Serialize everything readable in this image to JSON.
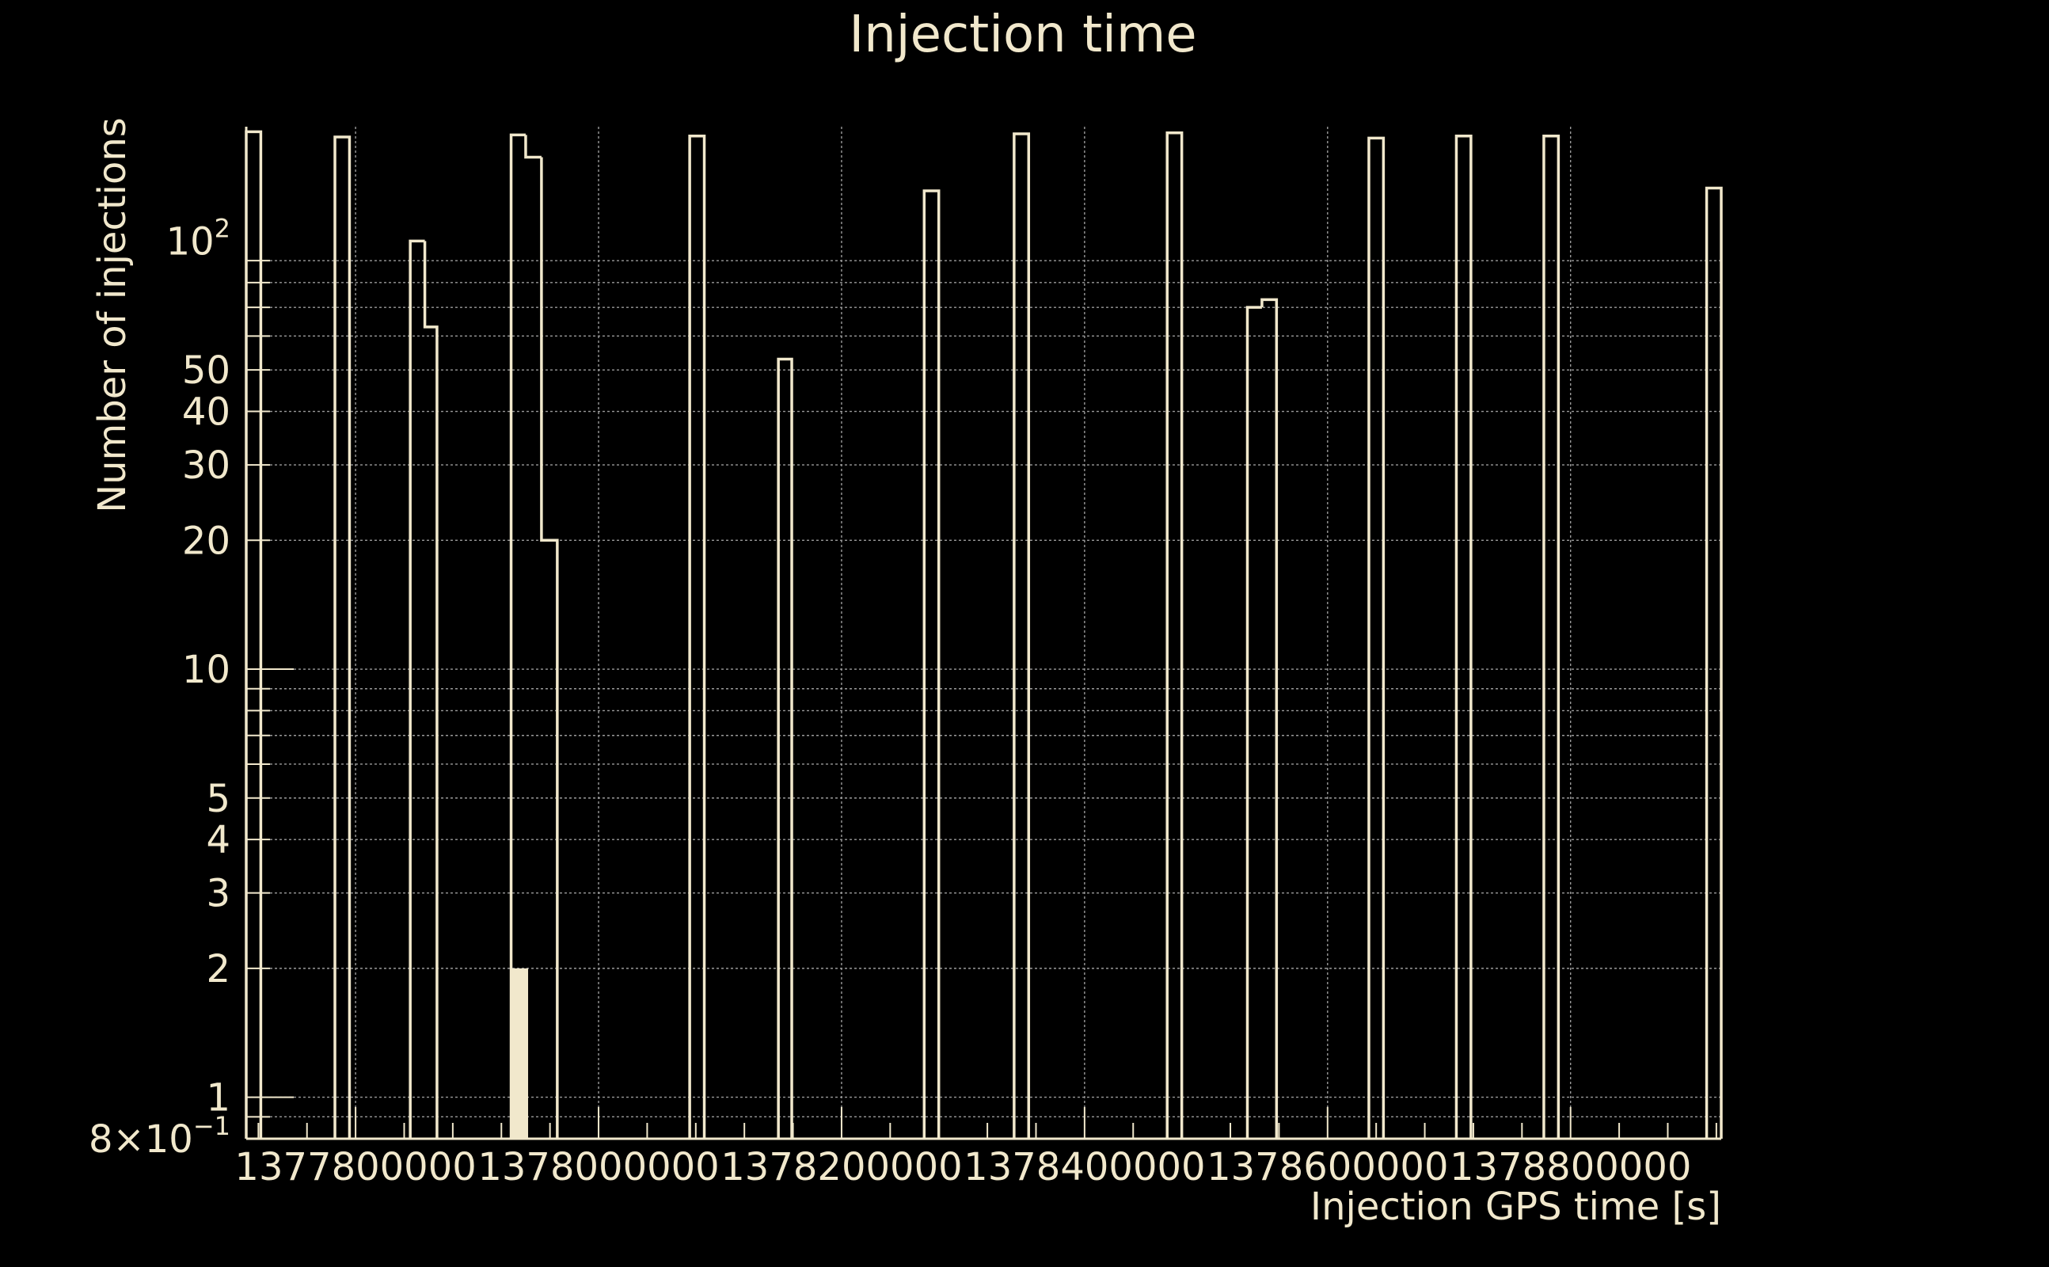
{
  "chart_data": {
    "type": "histogram",
    "title": "Injection time",
    "xlabel": "Injection GPS time [s]",
    "ylabel": "Number of injections",
    "yscale": "log",
    "xlim": [
      1377710000,
      1378924000
    ],
    "ylim": [
      0.8,
      185
    ],
    "grid": true,
    "colors": {
      "background": "#000000",
      "foreground": "#f1e8cc",
      "grid": "#9a9a9a"
    },
    "x_ticks": [
      {
        "value": 1377800000,
        "label": "1377800000"
      },
      {
        "value": 1378000000,
        "label": "1378000000"
      },
      {
        "value": 1378200000,
        "label": "1378200000"
      },
      {
        "value": 1378400000,
        "label": "1378400000"
      },
      {
        "value": 1378600000,
        "label": "1378600000"
      },
      {
        "value": 1378800000,
        "label": "1378800000"
      }
    ],
    "y_ticks": [
      {
        "value": 0.8,
        "base": "8",
        "sup": "−1",
        "prefix": "×10"
      },
      {
        "value": 1,
        "label": "1"
      },
      {
        "value": 2,
        "label": "2"
      },
      {
        "value": 3,
        "label": "3"
      },
      {
        "value": 4,
        "label": "4"
      },
      {
        "value": 5,
        "label": "5"
      },
      {
        "value": 10,
        "label": "10"
      },
      {
        "value": 20,
        "label": "20"
      },
      {
        "value": 30,
        "label": "30"
      },
      {
        "value": 40,
        "label": "40"
      },
      {
        "value": 50,
        "label": "50"
      },
      {
        "value": 100,
        "base": "10",
        "sup": "2"
      }
    ],
    "series": [
      {
        "style": "step",
        "bins": [
          {
            "x0": 1377710000,
            "x1": 1377722000,
            "value": 180
          },
          {
            "x0": 1377783000,
            "x1": 1377795000,
            "value": 175
          },
          {
            "x0": 1377845000,
            "x1": 1377857000,
            "value": 100
          },
          {
            "x0": 1377857000,
            "x1": 1377867000,
            "value": 63
          },
          {
            "x0": 1377928000,
            "x1": 1377940000,
            "value": 177
          },
          {
            "x0": 1377940000,
            "x1": 1377953000,
            "value": 157
          },
          {
            "x0": 1377953000,
            "x1": 1377966000,
            "value": 20
          },
          {
            "x0": 1378075000,
            "x1": 1378087000,
            "value": 176
          },
          {
            "x0": 1378148000,
            "x1": 1378159000,
            "value": 53
          },
          {
            "x0": 1378268000,
            "x1": 1378280000,
            "value": 131
          },
          {
            "x0": 1378342000,
            "x1": 1378354000,
            "value": 178
          },
          {
            "x0": 1378468000,
            "x1": 1378480000,
            "value": 179
          },
          {
            "x0": 1378534000,
            "x1": 1378546000,
            "value": 70
          },
          {
            "x0": 1378546000,
            "x1": 1378558000,
            "value": 73
          },
          {
            "x0": 1378634000,
            "x1": 1378646000,
            "value": 174
          },
          {
            "x0": 1378706000,
            "x1": 1378718000,
            "value": 176
          },
          {
            "x0": 1378778000,
            "x1": 1378790000,
            "value": 176
          },
          {
            "x0": 1378912000,
            "x1": 1378924000,
            "value": 133
          }
        ]
      },
      {
        "style": "filled",
        "bins": [
          {
            "x0": 1377928000,
            "x1": 1377942000,
            "value": 2
          }
        ]
      }
    ]
  }
}
